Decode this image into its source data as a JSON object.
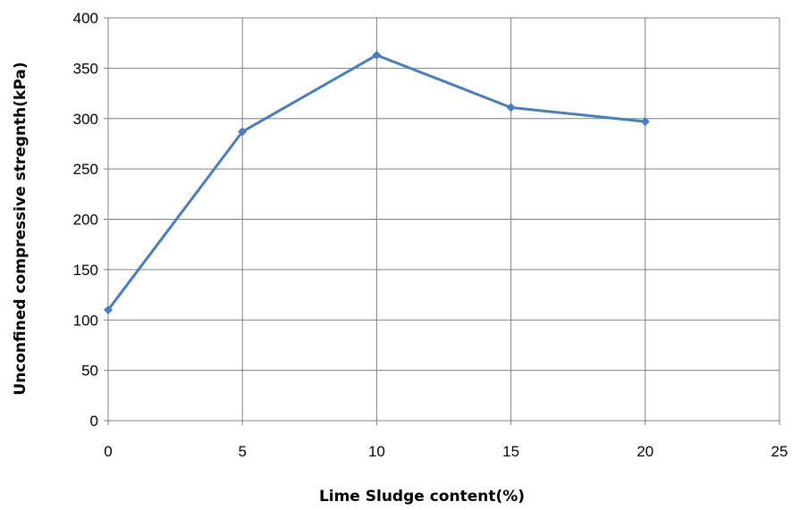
{
  "chart_data": {
    "type": "line",
    "title": "",
    "xlabel": "Lime Sludge content(%)",
    "ylabel": "Unconfined compressive stregnth(kPa)",
    "xlim": [
      0,
      25
    ],
    "ylim": [
      0,
      400
    ],
    "xticks": [
      "0",
      "5",
      "10",
      "15",
      "20",
      "25"
    ],
    "yticks": [
      "0",
      "50",
      "100",
      "150",
      "200",
      "250",
      "300",
      "350",
      "400"
    ],
    "grid": true,
    "legend": "none",
    "colors": {
      "series": "#4a7ebb",
      "grid": "#808080",
      "axis": "#808080"
    },
    "series": [
      {
        "x": [
          0,
          5,
          10,
          15,
          20
        ],
        "y": [
          110,
          287,
          363,
          311,
          297
        ],
        "marker": "diamond"
      }
    ]
  }
}
